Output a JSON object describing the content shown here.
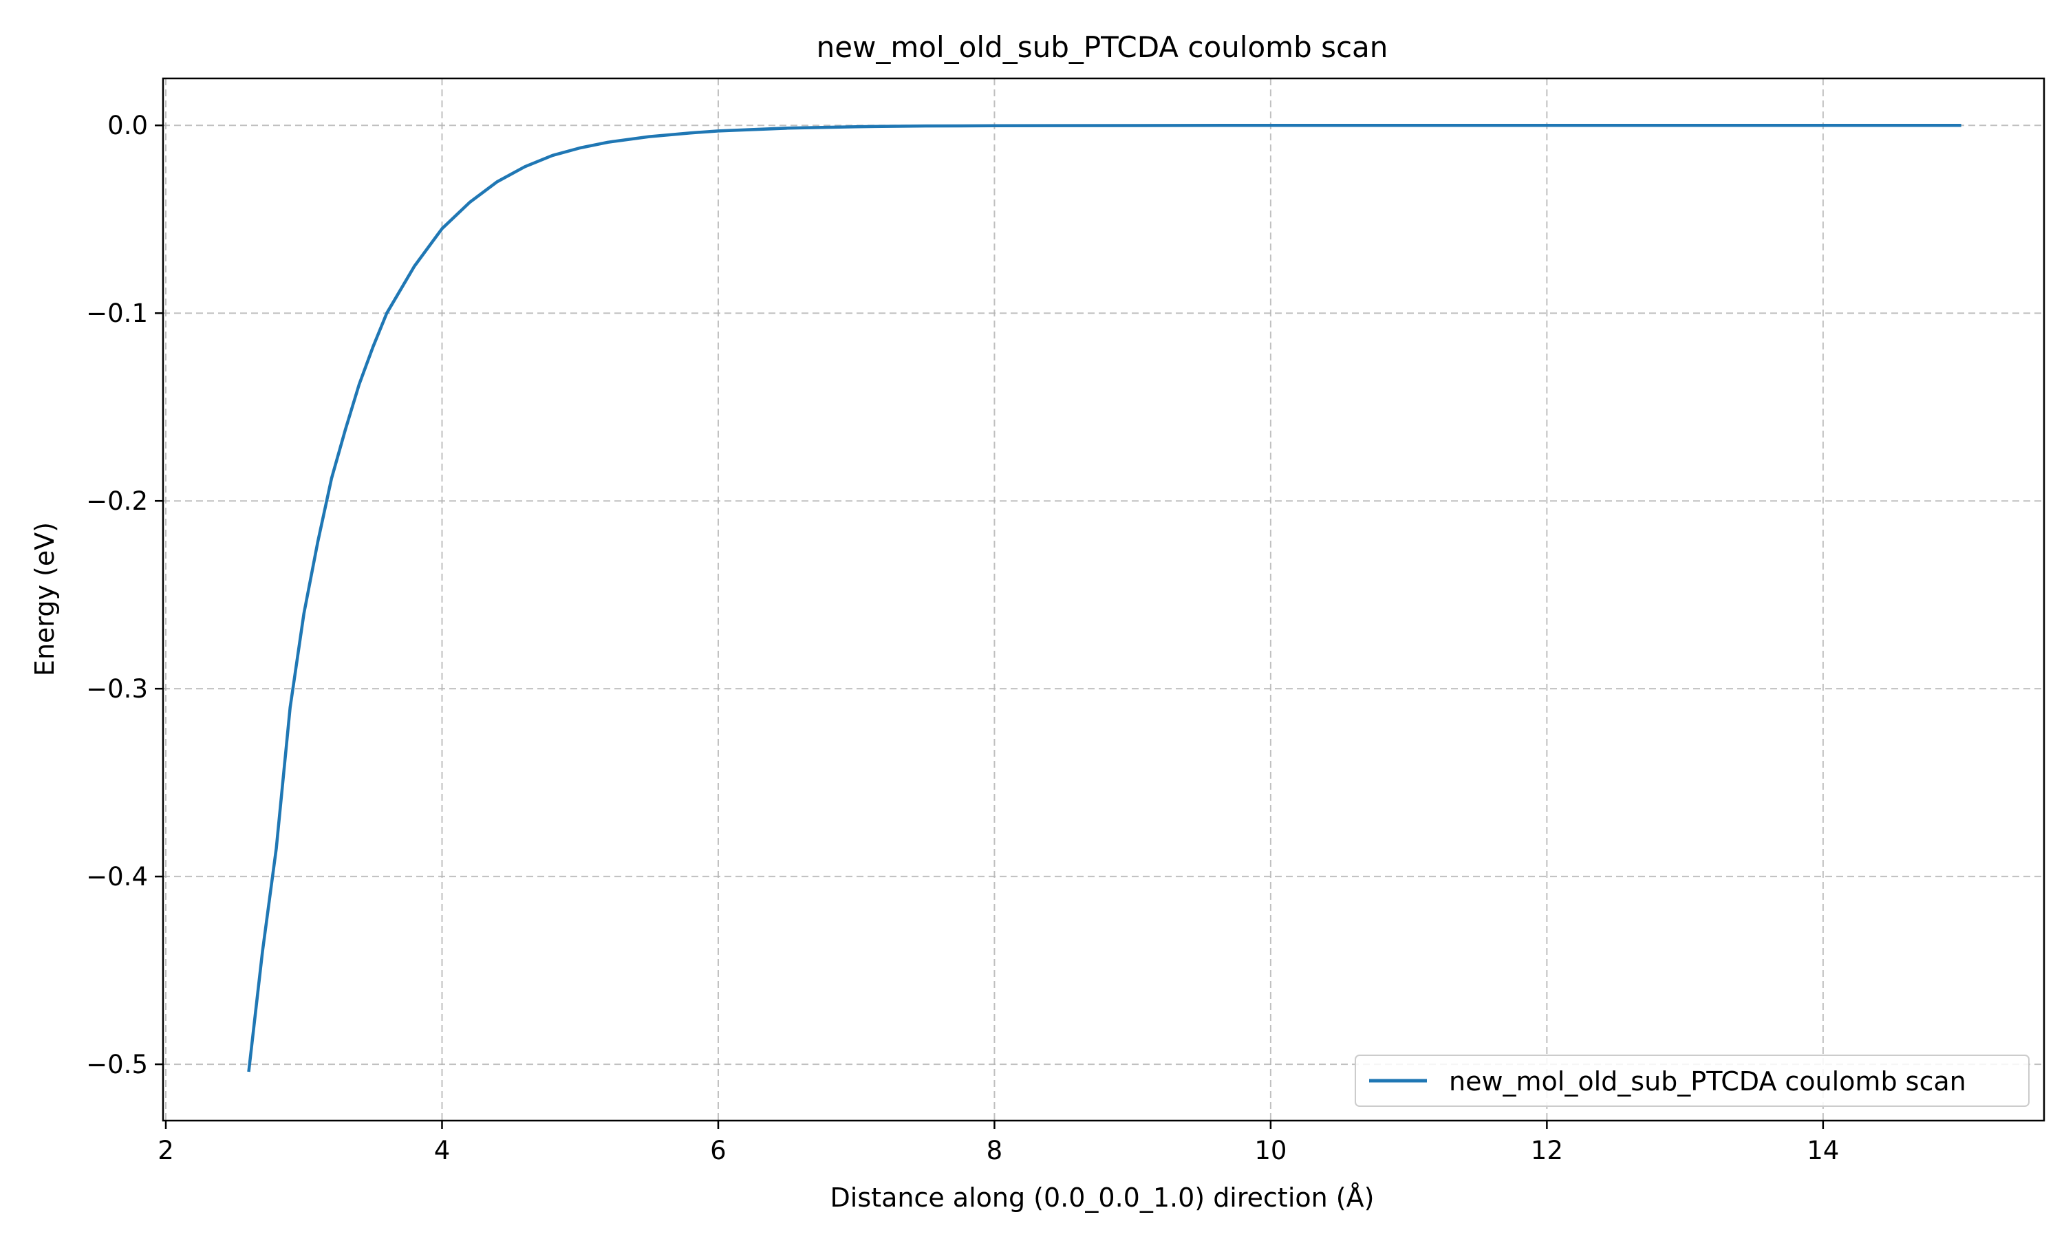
{
  "chart_data": {
    "type": "line",
    "title": "new_mol_old_sub_PTCDA coulomb scan",
    "xlabel": "Distance along (0.0_0.0_1.0) direction (Å)",
    "ylabel": "Energy (eV)",
    "xlim": [
      1.98,
      15.6
    ],
    "ylim": [
      -0.53,
      0.025
    ],
    "xticks": [
      2,
      4,
      6,
      8,
      10,
      12,
      14
    ],
    "xtick_labels": [
      "2",
      "4",
      "6",
      "8",
      "10",
      "12",
      "14"
    ],
    "yticks": [
      0.0,
      -0.1,
      -0.2,
      -0.3,
      -0.4,
      -0.5
    ],
    "ytick_labels": [
      "0.0",
      "−0.1",
      "−0.2",
      "−0.3",
      "−0.4",
      "−0.5"
    ],
    "grid": true,
    "grid_style": "dashed",
    "legend_position": "lower-right",
    "series": [
      {
        "name": "new_mol_old_sub_PTCDA coulomb scan",
        "color": "#1f77b4",
        "x": [
          2.6,
          2.7,
          2.8,
          2.9,
          3.0,
          3.1,
          3.2,
          3.3,
          3.4,
          3.5,
          3.6,
          3.8,
          4.0,
          4.2,
          4.4,
          4.6,
          4.8,
          5.0,
          5.2,
          5.5,
          5.8,
          6.0,
          6.5,
          7.0,
          7.5,
          8.0,
          9.0,
          10.0,
          11.0,
          12.0,
          13.0,
          14.0,
          15.0
        ],
        "y": [
          -0.504,
          -0.44,
          -0.385,
          -0.31,
          -0.26,
          -0.222,
          -0.188,
          -0.162,
          -0.138,
          -0.118,
          -0.1,
          -0.075,
          -0.055,
          -0.041,
          -0.03,
          -0.022,
          -0.016,
          -0.012,
          -0.009,
          -0.006,
          -0.004,
          -0.003,
          -0.0015,
          -0.0007,
          -0.0003,
          -0.0002,
          -0.0001,
          0.0,
          0.0,
          0.0,
          0.0,
          0.0,
          0.0
        ]
      }
    ]
  }
}
